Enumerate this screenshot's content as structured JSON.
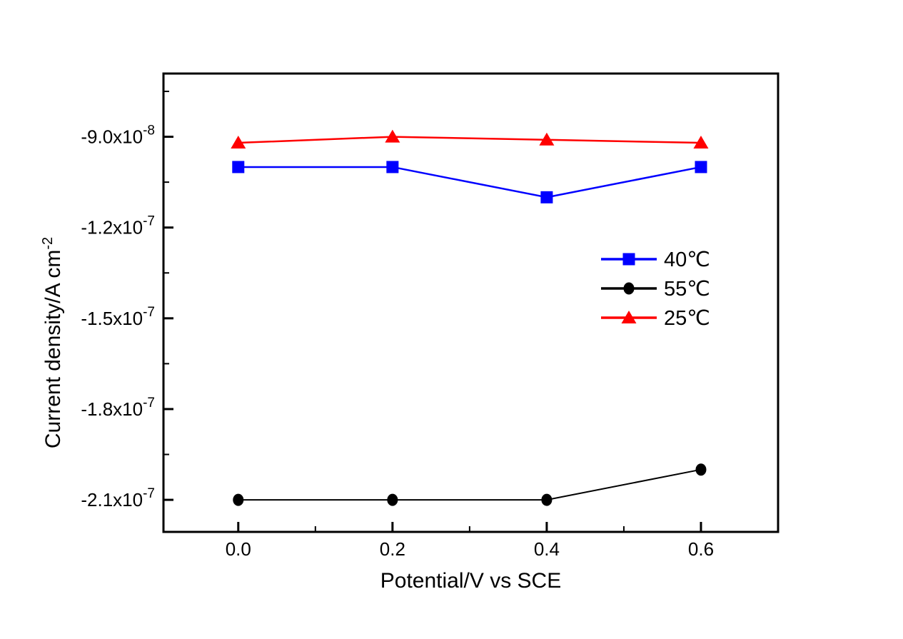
{
  "chart_data": {
    "type": "line",
    "title": "",
    "xlabel": "Potential/V vs SCE",
    "ylabel": "Current density/A cm",
    "ylabel_superscript": "-2",
    "background": "#FFFFFF",
    "grid": false,
    "x": [
      0.0,
      0.2,
      0.4,
      0.6
    ],
    "series": [
      {
        "name": "40℃",
        "color": "#0000FF",
        "marker": "square",
        "values": [
          -1e-07,
          -1e-07,
          -1.1e-07,
          -1e-07
        ]
      },
      {
        "name": "55℃",
        "color": "#000000",
        "marker": "circle",
        "values": [
          -2.1e-07,
          -2.1e-07,
          -2.1e-07,
          -2e-07
        ]
      },
      {
        "name": "25℃",
        "color": "#FF0000",
        "marker": "triangle",
        "values": [
          -9.2e-08,
          -9e-08,
          -9.1e-08,
          -9.2e-08
        ]
      }
    ],
    "xlim": [
      -0.097,
      0.7
    ],
    "ylim": [
      -2.206e-07,
      -6.91e-08
    ],
    "x_ticks": [
      {
        "v": 0.0,
        "label": "0.0"
      },
      {
        "v": 0.2,
        "label": "0.2"
      },
      {
        "v": 0.4,
        "label": "0.4"
      },
      {
        "v": 0.6,
        "label": "0.6"
      }
    ],
    "x_minor_ticks": [
      0.1,
      0.3,
      0.5
    ],
    "y_ticks": [
      {
        "v": -9e-08,
        "mantissa": "-9.0x10",
        "exponent": "-8"
      },
      {
        "v": -1.2e-07,
        "mantissa": "-1.2x10",
        "exponent": "-7"
      },
      {
        "v": -1.5e-07,
        "mantissa": "-1.5x10",
        "exponent": "-7"
      },
      {
        "v": -1.8e-07,
        "mantissa": "-1.8x10",
        "exponent": "-7"
      },
      {
        "v": -2.1e-07,
        "mantissa": "-2.1x10",
        "exponent": "-7"
      }
    ],
    "y_minor_ticks": [
      -7.5e-08,
      -1.05e-07,
      -1.35e-07,
      -1.65e-07,
      -1.95e-07
    ],
    "legend": {
      "position": "inside-right"
    }
  }
}
